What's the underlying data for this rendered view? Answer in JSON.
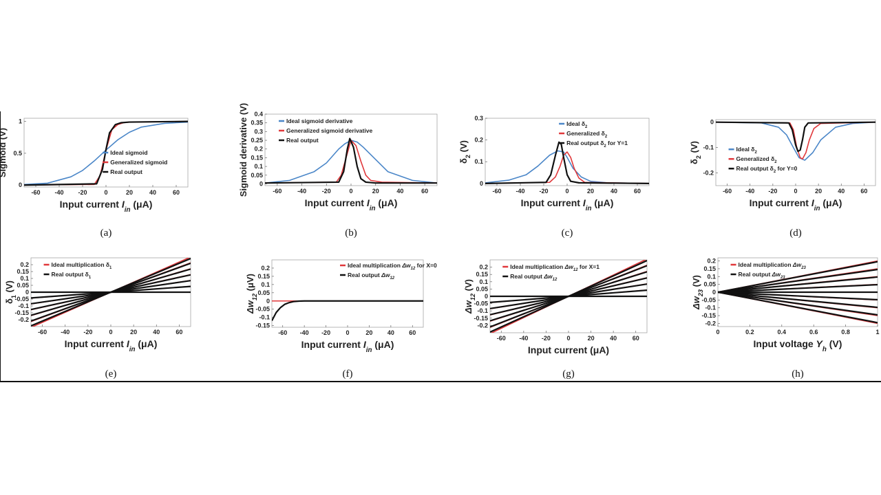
{
  "colors": {
    "ideal": "#4a86c8",
    "generalized": "#e0373a",
    "real": "#111111"
  },
  "chart_data": [
    {
      "id": "a",
      "type": "line",
      "caption": "(a)",
      "xlabel": "Input current I_in (μA)",
      "ylabel": "Sigmoid (V)",
      "xlim": [
        -70,
        70
      ],
      "ylim": [
        -0.03,
        1.05
      ],
      "xticks": [
        -60,
        -40,
        -20,
        0,
        20,
        40,
        60
      ],
      "yticks": [
        0,
        0.5,
        1
      ],
      "ytick_labels": [
        "0",
        "0.5",
        "1"
      ],
      "legend_position": "center-right",
      "series": [
        {
          "name": "Ideal sigmoid",
          "color": "ideal",
          "x": [
            -70,
            -50,
            -30,
            -20,
            -10,
            0,
            10,
            20,
            30,
            50,
            70
          ],
          "y": [
            0.01,
            0.03,
            0.13,
            0.23,
            0.38,
            0.55,
            0.71,
            0.83,
            0.91,
            0.97,
            0.99
          ]
        },
        {
          "name": "Generalized sigmoid",
          "color": "generalized",
          "x": [
            -70,
            -10,
            -5,
            0,
            5,
            10,
            15,
            20,
            70
          ],
          "y": [
            0,
            0.01,
            0.15,
            0.55,
            0.87,
            0.95,
            0.98,
            0.99,
            1.0
          ]
        },
        {
          "name": "Real output",
          "color": "real",
          "x": [
            -70,
            -8,
            -3,
            0,
            3,
            8,
            13,
            20,
            70
          ],
          "y": [
            0,
            0.02,
            0.25,
            0.56,
            0.82,
            0.95,
            0.98,
            0.99,
            1.0
          ]
        }
      ]
    },
    {
      "id": "b",
      "type": "line",
      "caption": "(b)",
      "xlabel": "Input current I_in (μA)",
      "ylabel": "Sigmoid derivative (V)",
      "xlim": [
        -70,
        70
      ],
      "ylim": [
        -0.01,
        0.4
      ],
      "xticks": [
        -60,
        -40,
        -20,
        0,
        20,
        40,
        60
      ],
      "yticks": [
        0,
        0.05,
        0.1,
        0.15,
        0.2,
        0.25,
        0.3,
        0.35,
        0.4
      ],
      "ytick_labels": [
        "0",
        "0.05",
        "0.1",
        "0.15",
        "0.2",
        "0.25",
        "0.3",
        "0.35",
        "0.4"
      ],
      "legend_position": "top-left",
      "series": [
        {
          "name": "Ideal sigmoid derivative",
          "color": "ideal",
          "x": [
            -70,
            -50,
            -30,
            -20,
            -10,
            -5,
            0,
            5,
            10,
            20,
            30,
            50,
            70
          ],
          "y": [
            0.005,
            0.02,
            0.07,
            0.12,
            0.2,
            0.23,
            0.25,
            0.24,
            0.21,
            0.14,
            0.07,
            0.02,
            0.005
          ]
        },
        {
          "name": "Generalized sigmoid derivative",
          "color": "generalized",
          "x": [
            -70,
            -12,
            -8,
            -4,
            0,
            4,
            8,
            12,
            16,
            25,
            70
          ],
          "y": [
            0.005,
            0.01,
            0.05,
            0.15,
            0.25,
            0.22,
            0.13,
            0.05,
            0.02,
            0.01,
            0.005
          ]
        },
        {
          "name": "Real output",
          "color": "real",
          "x": [
            -70,
            -10,
            -6,
            -3,
            -1,
            2,
            5,
            8,
            12,
            20,
            70
          ],
          "y": [
            0.005,
            0.01,
            0.07,
            0.2,
            0.26,
            0.21,
            0.1,
            0.03,
            0.01,
            0.005,
            0.005
          ]
        }
      ]
    },
    {
      "id": "c",
      "type": "line",
      "caption": "(c)",
      "xlabel": "Input current I_in (μA)",
      "ylabel": "δ2 (V)",
      "xlim": [
        -70,
        70
      ],
      "ylim": [
        -0.01,
        0.3
      ],
      "xticks": [
        -60,
        -40,
        -20,
        0,
        20,
        40,
        60
      ],
      "yticks": [
        0,
        0.1,
        0.2,
        0.3
      ],
      "ytick_labels": [
        "0",
        "0.1",
        "0.2",
        "0.3"
      ],
      "legend_position": "top-right",
      "series": [
        {
          "name": "Ideal δ2",
          "color": "ideal",
          "x": [
            -70,
            -50,
            -35,
            -25,
            -15,
            -8,
            -3,
            0,
            5,
            12,
            20,
            35,
            70
          ],
          "y": [
            0.003,
            0.015,
            0.04,
            0.08,
            0.13,
            0.15,
            0.145,
            0.12,
            0.07,
            0.03,
            0.01,
            0.003,
            0
          ]
        },
        {
          "name": "Generalized δ2",
          "color": "generalized",
          "x": [
            -70,
            -15,
            -10,
            -6,
            -3,
            0,
            3,
            6,
            10,
            15,
            70
          ],
          "y": [
            0,
            0.005,
            0.03,
            0.08,
            0.13,
            0.145,
            0.12,
            0.07,
            0.025,
            0.005,
            0
          ]
        },
        {
          "name": "Real output δ2 for Y=1",
          "color": "real",
          "x": [
            -70,
            -18,
            -14,
            -10,
            -7,
            -5,
            -3,
            0,
            3,
            10,
            70
          ],
          "y": [
            0,
            0.005,
            0.04,
            0.13,
            0.19,
            0.18,
            0.12,
            0.04,
            0.01,
            0.003,
            0
          ]
        }
      ]
    },
    {
      "id": "d",
      "type": "line",
      "caption": "(d)",
      "xlabel": "Input current I_in (μA)",
      "ylabel": "δ2 (V)",
      "xlim": [
        -70,
        70
      ],
      "ylim": [
        -0.25,
        0.01
      ],
      "xticks": [
        -60,
        -40,
        -20,
        0,
        20,
        40,
        60
      ],
      "yticks": [
        0,
        -0.1,
        -0.2
      ],
      "ytick_labels": [
        "0",
        "-0.1",
        "-0.2"
      ],
      "legend_position": "center-left",
      "series": [
        {
          "name": "Ideal δ2",
          "color": "ideal",
          "x": [
            -70,
            -30,
            -15,
            -8,
            -2,
            3,
            8,
            15,
            22,
            35,
            50,
            70
          ],
          "y": [
            0,
            -0.003,
            -0.02,
            -0.05,
            -0.1,
            -0.14,
            -0.15,
            -0.12,
            -0.07,
            -0.02,
            -0.005,
            0
          ]
        },
        {
          "name": "Generalized δ2",
          "color": "generalized",
          "x": [
            -70,
            -5,
            -2,
            1,
            4,
            6,
            9,
            12,
            16,
            22,
            70
          ],
          "y": [
            0,
            -0.003,
            -0.03,
            -0.1,
            -0.14,
            -0.145,
            -0.12,
            -0.07,
            -0.025,
            -0.005,
            0
          ]
        },
        {
          "name": "Real output δ2 for Y=0",
          "color": "real",
          "x": [
            -70,
            -6,
            -3,
            0,
            2,
            4,
            6,
            8,
            11,
            70
          ],
          "y": [
            0,
            -0.003,
            -0.03,
            -0.09,
            -0.115,
            -0.11,
            -0.07,
            -0.02,
            -0.003,
            0
          ]
        }
      ]
    },
    {
      "id": "e",
      "type": "line",
      "caption": "(e)",
      "xlabel": "Input current I_in (μA)",
      "ylabel": "δ1 (V)",
      "xlim": [
        -70,
        70
      ],
      "ylim": [
        -0.25,
        0.25
      ],
      "xticks": [
        -60,
        -40,
        -20,
        0,
        20,
        40,
        60
      ],
      "yticks": [
        -0.2,
        -0.15,
        -0.1,
        -0.05,
        0,
        0.05,
        0.1,
        0.15,
        0.2
      ],
      "ytick_labels": [
        "-0.2",
        "-0.15",
        "-0.1",
        "-0.05",
        "0",
        "0.05",
        "0.1",
        "0.15",
        "0.2"
      ],
      "legend_position": "top-left",
      "series": [
        {
          "name": "Ideal multiplication δ1",
          "color": "generalized",
          "family": "linear",
          "x": [
            -70,
            70
          ],
          "slopes": [
            0,
            0.00061,
            0.00122,
            0.00183,
            0.00244,
            0.00305,
            0.00366
          ]
        },
        {
          "name": "Real output δ1",
          "color": "real",
          "family": "linear",
          "x": [
            -70,
            70
          ],
          "slopes": [
            0,
            0.0006,
            0.0012,
            0.0018,
            0.0024,
            0.003,
            0.0035
          ]
        }
      ]
    },
    {
      "id": "f",
      "type": "line",
      "caption": "(f)",
      "xlabel": "Input current I_in (μA)",
      "ylabel": "Δw12 (μV)",
      "xlim": [
        -70,
        70
      ],
      "ylim": [
        -0.16,
        0.25
      ],
      "xticks": [
        -60,
        -40,
        -20,
        0,
        20,
        40,
        60
      ],
      "yticks": [
        -0.15,
        -0.1,
        -0.05,
        0,
        0.05,
        0.1,
        0.15,
        0.2
      ],
      "ytick_labels": [
        "-0.15",
        "-0.1",
        "-0.05",
        "0",
        "0.05",
        "0.1",
        "0.15",
        "0.2"
      ],
      "legend_position": "top-right",
      "series": [
        {
          "name": "Ideal multiplication Δw12 for X=0",
          "color": "generalized",
          "x": [
            -70,
            70
          ],
          "y": [
            0,
            0
          ]
        },
        {
          "name": "Real output Δw12",
          "color": "real",
          "x": [
            -70,
            -66,
            -62,
            -58,
            -54,
            -50,
            -45,
            -40,
            70
          ],
          "y": [
            -0.12,
            -0.07,
            -0.04,
            -0.02,
            -0.01,
            -0.004,
            -0.001,
            0,
            0
          ]
        }
      ]
    },
    {
      "id": "g",
      "type": "line",
      "caption": "(g)",
      "xlabel": "Input current (μA)",
      "ylabel": "Δw12 (V)",
      "xlim": [
        -70,
        70
      ],
      "ylim": [
        -0.25,
        0.25
      ],
      "xticks": [
        -60,
        -40,
        -20,
        0,
        20,
        40,
        60
      ],
      "yticks": [
        -0.2,
        -0.15,
        -0.1,
        -0.05,
        0,
        0.05,
        0.1,
        0.15,
        0.2
      ],
      "ytick_labels": [
        "-0.2",
        "-0.15",
        "-0.1",
        "-0.05",
        "0",
        "0.05",
        "0.1",
        "0.15",
        "0.2"
      ],
      "legend_position": "top-left",
      "series": [
        {
          "name": "Ideal multiplication Δw12 for X=1",
          "color": "generalized",
          "family": "linear",
          "x": [
            -70,
            70
          ],
          "slopes": [
            0,
            0.00061,
            0.00122,
            0.00183,
            0.00244,
            0.00305,
            0.00366
          ]
        },
        {
          "name": "Real output Δw12",
          "color": "real",
          "family": "linear",
          "x": [
            -70,
            70
          ],
          "slopes": [
            0,
            0.0006,
            0.0012,
            0.0018,
            0.0024,
            0.003,
            0.0035
          ]
        }
      ]
    },
    {
      "id": "h",
      "type": "line",
      "caption": "(h)",
      "xlabel": "Input voltage Y_h (V)",
      "ylabel": "Δw23 (V)",
      "xlim": [
        0,
        1
      ],
      "ylim": [
        -0.22,
        0.22
      ],
      "xticks": [
        0,
        0.2,
        0.4,
        0.6,
        0.8,
        1
      ],
      "yticks": [
        -0.2,
        -0.15,
        -0.1,
        -0.05,
        0,
        0.05,
        0.1,
        0.15,
        0.2
      ],
      "xtick_labels": [
        "0",
        "0.2",
        "0.4",
        "0.6",
        "0.8",
        "1"
      ],
      "ytick_labels": [
        "-0.2",
        "-0.15",
        "-0.1",
        "-0.05",
        "0",
        "0.05",
        "0.1",
        "0.15",
        "0.2"
      ],
      "legend_position": "top-left",
      "series": [
        {
          "name": "Ideal multiplication Δw23",
          "color": "generalized",
          "family": "linear",
          "x": [
            0,
            1
          ],
          "slopes": [
            -0.2,
            -0.15,
            -0.1,
            -0.05,
            0,
            0.05,
            0.1,
            0.15,
            0.2
          ]
        },
        {
          "name": "Real output Δw23",
          "color": "real",
          "family": "linear",
          "x": [
            0,
            1
          ],
          "slopes": [
            -0.195,
            -0.145,
            -0.097,
            -0.048,
            0,
            0.048,
            0.097,
            0.145,
            0.195
          ]
        }
      ]
    }
  ]
}
